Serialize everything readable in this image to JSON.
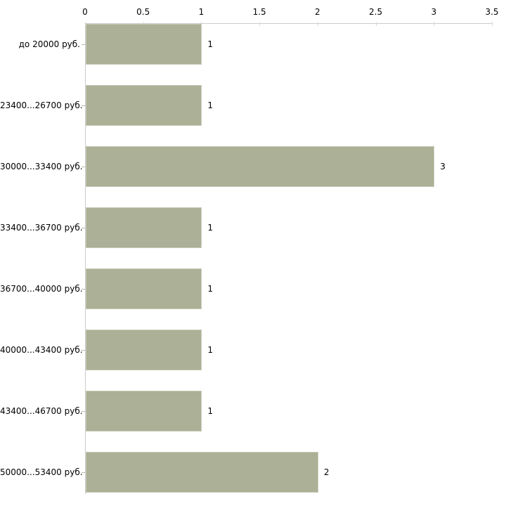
{
  "chart_data": {
    "type": "bar",
    "orientation": "horizontal",
    "title": "",
    "xlabel": "",
    "ylabel": "",
    "axis_position": "top",
    "grid": false,
    "legend": false,
    "categories": [
      "до 20000 руб.",
      "23400...26700 руб.",
      "30000...33400 руб.",
      "33400...36700 руб.",
      "36700...40000 руб.",
      "40000...43400 руб.",
      "43400...46700 руб.",
      "50000...53400 руб."
    ],
    "values": [
      1,
      1,
      3,
      1,
      1,
      1,
      1,
      2
    ],
    "value_labels": [
      "1",
      "1",
      "3",
      "1",
      "1",
      "1",
      "1",
      "2"
    ],
    "x_ticks": [
      0,
      0.5,
      1,
      1.5,
      2,
      2.5,
      3,
      3.5
    ],
    "x_tick_labels": [
      "0",
      "0.5",
      "1",
      "1.5",
      "2",
      "2.5",
      "3",
      "3.5"
    ],
    "xlim": [
      0,
      3.5
    ],
    "colors": {
      "bar_fill": "#abb096",
      "bar_border": "#c6c9b7",
      "axis_line": "#cccccc",
      "tick_mark": "#d8dbc3",
      "category_tick": "#b8b8a8",
      "text": "#000000",
      "background": "#ffffff"
    }
  }
}
